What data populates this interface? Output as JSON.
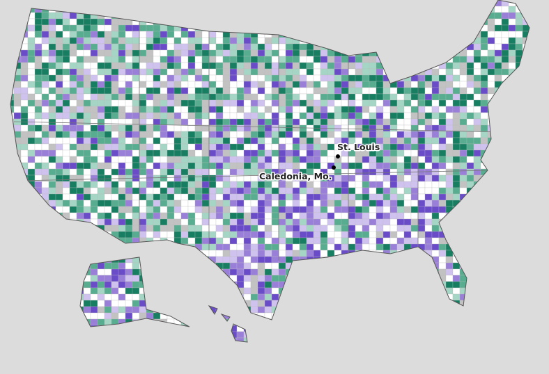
{
  "labels": [
    {
      "text": "St. Louis"
    },
    {
      "text": "Caledonia, Mo."
    }
  ]
}
